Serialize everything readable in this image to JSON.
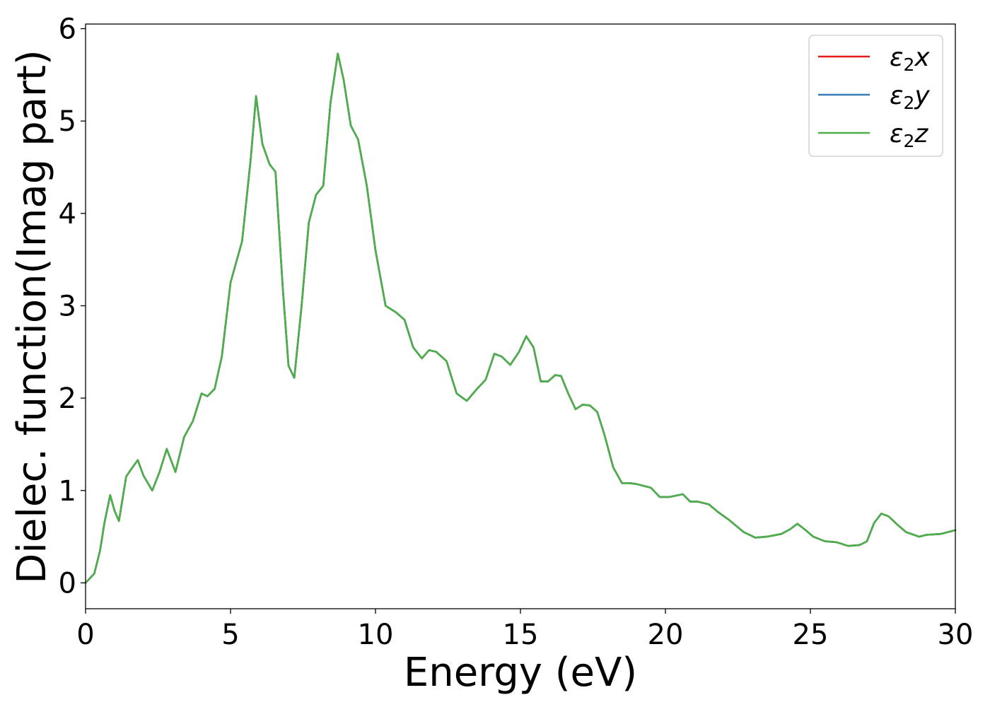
{
  "chart_data": {
    "type": "line",
    "xlabel": "Energy (eV)",
    "ylabel": "Dielec. function(Imag part)",
    "xlim": [
      0,
      30
    ],
    "ylim": [
      -0.28,
      6.05
    ],
    "xticks": [
      0,
      5,
      10,
      15,
      20,
      25,
      30
    ],
    "yticks": [
      0,
      1,
      2,
      3,
      4,
      5,
      6
    ],
    "x_tick_labels": [
      "0",
      "5",
      "10",
      "15",
      "20",
      "25",
      "30"
    ],
    "y_tick_labels": [
      "0",
      "1",
      "2",
      "3",
      "4",
      "5",
      "6"
    ],
    "grid": false,
    "legend_position": "top-right",
    "series": [
      {
        "name": "ε2x",
        "legend": {
          "symbol": "ε",
          "sub": "2",
          "axis": "x"
        },
        "color": "#e41a1c",
        "x": [
          0,
          0.3,
          0.5,
          0.65,
          0.85,
          1.0,
          1.15,
          1.4,
          1.55,
          1.8,
          2.0,
          2.3,
          2.55,
          2.8,
          3.1,
          3.4,
          3.7,
          4.0,
          4.2,
          4.45,
          4.7,
          5.0,
          5.4,
          5.7,
          5.88,
          6.1,
          6.35,
          6.55,
          6.8,
          7.0,
          7.2,
          7.45,
          7.7,
          7.95,
          8.2,
          8.45,
          8.7,
          8.9,
          9.15,
          9.4,
          9.7,
          10.0,
          10.35,
          10.7,
          11.0,
          11.3,
          11.6,
          11.85,
          12.1,
          12.45,
          12.8,
          13.15,
          13.5,
          13.8,
          14.1,
          14.35,
          14.65,
          14.95,
          15.2,
          15.45,
          15.7,
          15.95,
          16.2,
          16.4,
          16.65,
          16.9,
          17.15,
          17.4,
          17.65,
          17.9,
          18.2,
          18.5,
          18.75,
          19.0,
          19.5,
          19.8,
          20.15,
          20.6,
          20.85,
          21.1,
          21.5,
          21.8,
          22.2,
          22.7,
          23.1,
          23.5,
          24.0,
          24.3,
          24.55,
          24.8,
          25.1,
          25.5,
          25.9,
          26.3,
          26.7,
          26.95,
          27.2,
          27.45,
          27.7,
          28.0,
          28.3,
          28.75,
          29.0,
          29.5,
          30.0
        ],
        "values": [
          0.0,
          0.1,
          0.35,
          0.65,
          0.95,
          0.78,
          0.67,
          1.15,
          1.22,
          1.33,
          1.16,
          1.0,
          1.2,
          1.45,
          1.2,
          1.58,
          1.75,
          2.05,
          2.02,
          2.1,
          2.45,
          3.25,
          3.7,
          4.6,
          5.27,
          4.75,
          4.53,
          4.45,
          3.2,
          2.35,
          2.22,
          3.0,
          3.9,
          4.2,
          4.3,
          5.2,
          5.73,
          5.45,
          4.95,
          4.8,
          4.3,
          3.6,
          3.0,
          2.93,
          2.85,
          2.55,
          2.43,
          2.52,
          2.5,
          2.4,
          2.05,
          1.97,
          2.1,
          2.2,
          2.48,
          2.45,
          2.36,
          2.5,
          2.67,
          2.55,
          2.18,
          2.18,
          2.25,
          2.24,
          2.05,
          1.88,
          1.93,
          1.92,
          1.85,
          1.6,
          1.25,
          1.08,
          1.08,
          1.07,
          1.03,
          0.93,
          0.93,
          0.96,
          0.88,
          0.88,
          0.85,
          0.77,
          0.68,
          0.55,
          0.49,
          0.5,
          0.53,
          0.58,
          0.64,
          0.58,
          0.5,
          0.45,
          0.44,
          0.4,
          0.41,
          0.45,
          0.65,
          0.75,
          0.72,
          0.63,
          0.55,
          0.5,
          0.52,
          0.53,
          0.57
        ]
      },
      {
        "name": "ε2y",
        "legend": {
          "symbol": "ε",
          "sub": "2",
          "axis": "y"
        },
        "color": "#377eb8",
        "x": [
          0,
          0.3,
          0.5,
          0.65,
          0.85,
          1.0,
          1.15,
          1.4,
          1.55,
          1.8,
          2.0,
          2.3,
          2.55,
          2.8,
          3.1,
          3.4,
          3.7,
          4.0,
          4.2,
          4.45,
          4.7,
          5.0,
          5.4,
          5.7,
          5.88,
          6.1,
          6.35,
          6.55,
          6.8,
          7.0,
          7.2,
          7.45,
          7.7,
          7.95,
          8.2,
          8.45,
          8.7,
          8.9,
          9.15,
          9.4,
          9.7,
          10.0,
          10.35,
          10.7,
          11.0,
          11.3,
          11.6,
          11.85,
          12.1,
          12.45,
          12.8,
          13.15,
          13.5,
          13.8,
          14.1,
          14.35,
          14.65,
          14.95,
          15.2,
          15.45,
          15.7,
          15.95,
          16.2,
          16.4,
          16.65,
          16.9,
          17.15,
          17.4,
          17.65,
          17.9,
          18.2,
          18.5,
          18.75,
          19.0,
          19.5,
          19.8,
          20.15,
          20.6,
          20.85,
          21.1,
          21.5,
          21.8,
          22.2,
          22.7,
          23.1,
          23.5,
          24.0,
          24.3,
          24.55,
          24.8,
          25.1,
          25.5,
          25.9,
          26.3,
          26.7,
          26.95,
          27.2,
          27.45,
          27.7,
          28.0,
          28.3,
          28.75,
          29.0,
          29.5,
          30.0
        ],
        "values": [
          0.0,
          0.1,
          0.35,
          0.65,
          0.95,
          0.78,
          0.67,
          1.15,
          1.22,
          1.33,
          1.16,
          1.0,
          1.2,
          1.45,
          1.2,
          1.58,
          1.75,
          2.05,
          2.02,
          2.1,
          2.45,
          3.25,
          3.7,
          4.6,
          5.27,
          4.75,
          4.53,
          4.45,
          3.2,
          2.35,
          2.22,
          3.0,
          3.9,
          4.2,
          4.3,
          5.2,
          5.73,
          5.45,
          4.95,
          4.8,
          4.3,
          3.6,
          3.0,
          2.93,
          2.85,
          2.55,
          2.43,
          2.52,
          2.5,
          2.4,
          2.05,
          1.97,
          2.1,
          2.2,
          2.48,
          2.45,
          2.36,
          2.5,
          2.67,
          2.55,
          2.18,
          2.18,
          2.25,
          2.24,
          2.05,
          1.88,
          1.93,
          1.92,
          1.85,
          1.6,
          1.25,
          1.08,
          1.08,
          1.07,
          1.03,
          0.93,
          0.93,
          0.96,
          0.88,
          0.88,
          0.85,
          0.77,
          0.68,
          0.55,
          0.49,
          0.5,
          0.53,
          0.58,
          0.64,
          0.58,
          0.5,
          0.45,
          0.44,
          0.4,
          0.41,
          0.45,
          0.65,
          0.75,
          0.72,
          0.63,
          0.55,
          0.5,
          0.52,
          0.53,
          0.57
        ]
      },
      {
        "name": "ε2z",
        "legend": {
          "symbol": "ε",
          "sub": "2",
          "axis": "z"
        },
        "color": "#4daf4a",
        "x": [
          0,
          0.3,
          0.5,
          0.65,
          0.85,
          1.0,
          1.15,
          1.4,
          1.55,
          1.8,
          2.0,
          2.3,
          2.55,
          2.8,
          3.1,
          3.4,
          3.7,
          4.0,
          4.2,
          4.45,
          4.7,
          5.0,
          5.4,
          5.7,
          5.88,
          6.1,
          6.35,
          6.55,
          6.8,
          7.0,
          7.2,
          7.45,
          7.7,
          7.95,
          8.2,
          8.45,
          8.7,
          8.9,
          9.15,
          9.4,
          9.7,
          10.0,
          10.35,
          10.7,
          11.0,
          11.3,
          11.6,
          11.85,
          12.1,
          12.45,
          12.8,
          13.15,
          13.5,
          13.8,
          14.1,
          14.35,
          14.65,
          14.95,
          15.2,
          15.45,
          15.7,
          15.95,
          16.2,
          16.4,
          16.65,
          16.9,
          17.15,
          17.4,
          17.65,
          17.9,
          18.2,
          18.5,
          18.75,
          19.0,
          19.5,
          19.8,
          20.15,
          20.6,
          20.85,
          21.1,
          21.5,
          21.8,
          22.2,
          22.7,
          23.1,
          23.5,
          24.0,
          24.3,
          24.55,
          24.8,
          25.1,
          25.5,
          25.9,
          26.3,
          26.7,
          26.95,
          27.2,
          27.45,
          27.7,
          28.0,
          28.3,
          28.75,
          29.0,
          29.5,
          30.0
        ],
        "values": [
          0.0,
          0.1,
          0.35,
          0.65,
          0.95,
          0.78,
          0.67,
          1.15,
          1.22,
          1.33,
          1.16,
          1.0,
          1.2,
          1.45,
          1.2,
          1.58,
          1.75,
          2.05,
          2.02,
          2.1,
          2.45,
          3.25,
          3.7,
          4.6,
          5.27,
          4.75,
          4.53,
          4.45,
          3.2,
          2.35,
          2.22,
          3.0,
          3.9,
          4.2,
          4.3,
          5.2,
          5.73,
          5.45,
          4.95,
          4.8,
          4.3,
          3.6,
          3.0,
          2.93,
          2.85,
          2.55,
          2.43,
          2.52,
          2.5,
          2.4,
          2.05,
          1.97,
          2.1,
          2.2,
          2.48,
          2.45,
          2.36,
          2.5,
          2.67,
          2.55,
          2.18,
          2.18,
          2.25,
          2.24,
          2.05,
          1.88,
          1.93,
          1.92,
          1.85,
          1.6,
          1.25,
          1.08,
          1.08,
          1.07,
          1.03,
          0.93,
          0.93,
          0.96,
          0.88,
          0.88,
          0.85,
          0.77,
          0.68,
          0.55,
          0.49,
          0.5,
          0.53,
          0.58,
          0.64,
          0.58,
          0.5,
          0.45,
          0.44,
          0.4,
          0.41,
          0.45,
          0.65,
          0.75,
          0.72,
          0.63,
          0.55,
          0.5,
          0.52,
          0.53,
          0.57
        ]
      }
    ]
  }
}
